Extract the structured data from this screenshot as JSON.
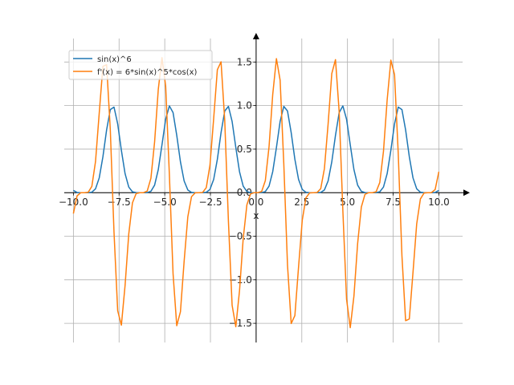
{
  "chart_data": {
    "type": "line",
    "title": "",
    "xlabel": "x",
    "ylabel": "",
    "xlim": [
      -10.5,
      11.3
    ],
    "ylim": [
      -1.72,
      1.77
    ],
    "grid": true,
    "legend_position": "top-left",
    "x_ticks": [
      -10.0,
      -7.5,
      -5.0,
      -2.5,
      0.0,
      2.5,
      5.0,
      7.5,
      10.0
    ],
    "x_tick_labels": [
      "−10.0",
      "−7.5",
      "−5.0",
      "−2.5",
      "0.0",
      "2.5",
      "5.0",
      "7.5",
      "10.0"
    ],
    "y_ticks": [
      -1.5,
      -1.0,
      -0.5,
      0.0,
      0.5,
      1.0,
      1.5
    ],
    "y_tick_labels": [
      "−1.5",
      "−1.0",
      "−0.5",
      "0.0",
      "0.5",
      "1.0",
      "1.5"
    ],
    "sampling": {
      "start": -10,
      "end": 10,
      "count": 100
    },
    "series": [
      {
        "name": "sin(x)^6",
        "color": "#1f77b4",
        "function": "sin(x)^6"
      },
      {
        "name": "f'(x) = 6*sin(x)^5*cos(x)",
        "color": "#ff7f0e",
        "function": "6*sin(x)^5*cos(x)"
      }
    ]
  }
}
